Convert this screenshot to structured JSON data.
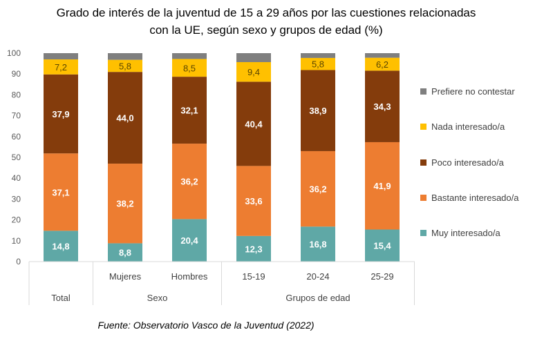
{
  "chart_data": {
    "type": "stacked-bar",
    "title": "Grado de interés de la juventud de 15 a 29 años por las cuestiones relacionadas con la UE, según sexo y grupos de edad (%)",
    "title_lines": [
      "Grado de interés de la juventud de 15 a 29 años por las cuestiones relacionadas",
      "con la UE, según sexo y grupos de edad (%)"
    ],
    "categories": [
      "Total",
      "Mujeres",
      "Hombres",
      "15-19",
      "20-24",
      "25-29"
    ],
    "groups": [
      {
        "label": "Total",
        "members": [
          "Total"
        ],
        "show_member_labels": false
      },
      {
        "label": "Sexo",
        "members": [
          "Mujeres",
          "Hombres"
        ],
        "show_member_labels": true
      },
      {
        "label": "Grupos de edad",
        "members": [
          "15-19",
          "20-24",
          "25-29"
        ],
        "show_member_labels": true
      }
    ],
    "ylim": [
      0,
      100
    ],
    "yticks": [
      0,
      10,
      20,
      30,
      40,
      50,
      60,
      70,
      80,
      90,
      100
    ],
    "grid": false,
    "legend_position": "right",
    "series": [
      {
        "name": "Muy interesado/a",
        "color": "#5fa8a6",
        "label_color": "#ffffff",
        "values": [
          14.8,
          8.8,
          20.4,
          12.3,
          16.8,
          15.4
        ],
        "labels": [
          "14,8",
          "8,8",
          "20,4",
          "12,3",
          "16,8",
          "15,4"
        ]
      },
      {
        "name": "Bastante interesado/a",
        "color": "#ed7d31",
        "label_color": "#ffffff",
        "values": [
          37.1,
          38.2,
          36.2,
          33.6,
          36.2,
          41.9
        ],
        "labels": [
          "37,1",
          "38,2",
          "36,2",
          "33,6",
          "36,2",
          "41,9"
        ]
      },
      {
        "name": "Poco interesado/a",
        "color": "#843c0c",
        "label_color": "#ffffff",
        "values": [
          37.9,
          44.0,
          32.1,
          40.4,
          38.9,
          34.3
        ],
        "labels": [
          "37,9",
          "44,0",
          "32,1",
          "40,4",
          "38,9",
          "34,3"
        ]
      },
      {
        "name": "Nada interesado/a",
        "color": "#ffc000",
        "label_color": "#5a4500",
        "values": [
          7.2,
          5.8,
          8.5,
          9.4,
          5.8,
          6.2
        ],
        "labels": [
          "7,2",
          "5,8",
          "8,5",
          "9,4",
          "5,8",
          "6,2"
        ]
      },
      {
        "name": "Prefiere no contestar",
        "color": "#7f7f7f",
        "label_color": null,
        "values": [
          3.0,
          3.2,
          2.8,
          4.3,
          2.3,
          2.2
        ],
        "labels": null
      }
    ],
    "source": "Fuente: Observatorio Vasco de la Juventud (2022)"
  }
}
